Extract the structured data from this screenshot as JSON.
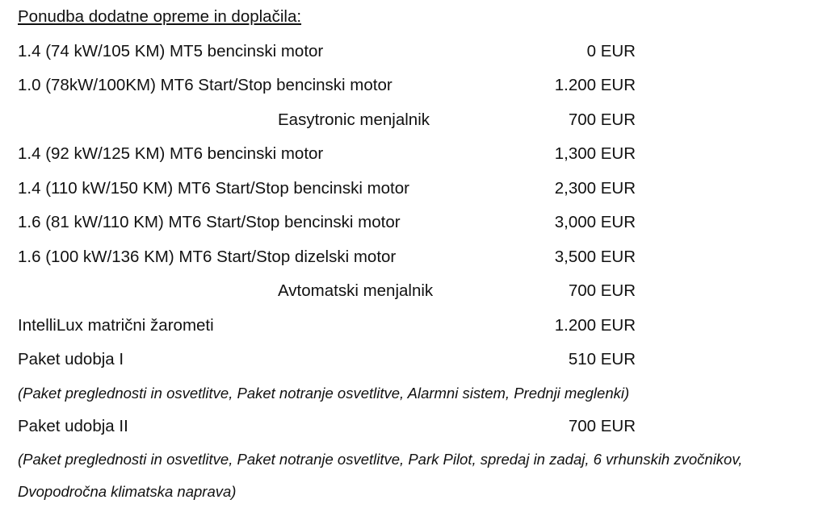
{
  "title": "Ponudba dodatne opreme in doplačila:",
  "items": [
    {
      "label": "1.4 (74 kW/105 KM) MT5 bencinski motor",
      "price": "0 EUR"
    },
    {
      "label": "1.0 (78kW/100KM) MT6 Start/Stop bencinski motor",
      "price": "1.200 EUR",
      "option": {
        "label": "Easytronic menjalnik",
        "price": "700 EUR"
      }
    },
    {
      "label": "1.4 (92 kW/125 KM) MT6 bencinski motor",
      "price": "1,300 EUR"
    },
    {
      "label": "1.4 (110 kW/150 KM) MT6 Start/Stop bencinski motor",
      "price": "2,300 EUR"
    },
    {
      "label": "1.6 (81 kW/110 KM) MT6 Start/Stop bencinski motor",
      "price": "3,000 EUR"
    },
    {
      "label": "1.6 (100 kW/136 KM) MT6 Start/Stop dizelski motor",
      "price": "3,500 EUR",
      "option": {
        "label": "Avtomatski menjalnik",
        "price": "700 EUR"
      }
    },
    {
      "label": "IntelliLux matrični žarometi",
      "price": "1.200 EUR"
    },
    {
      "label": "Paket udobja I",
      "price": "510 EUR",
      "note": "(Paket preglednosti in osvetlitve, Paket notranje osvetlitve, Alarmni sistem, Prednji meglenki)"
    },
    {
      "label": "Paket udobja II",
      "price": "700 EUR",
      "note": "(Paket preglednosti in osvetlitve, Paket notranje osvetlitve, Park Pilot, spredaj in zadaj, 6 vrhunskih zvočnikov, Dvopodročna klimatska naprava)"
    }
  ]
}
